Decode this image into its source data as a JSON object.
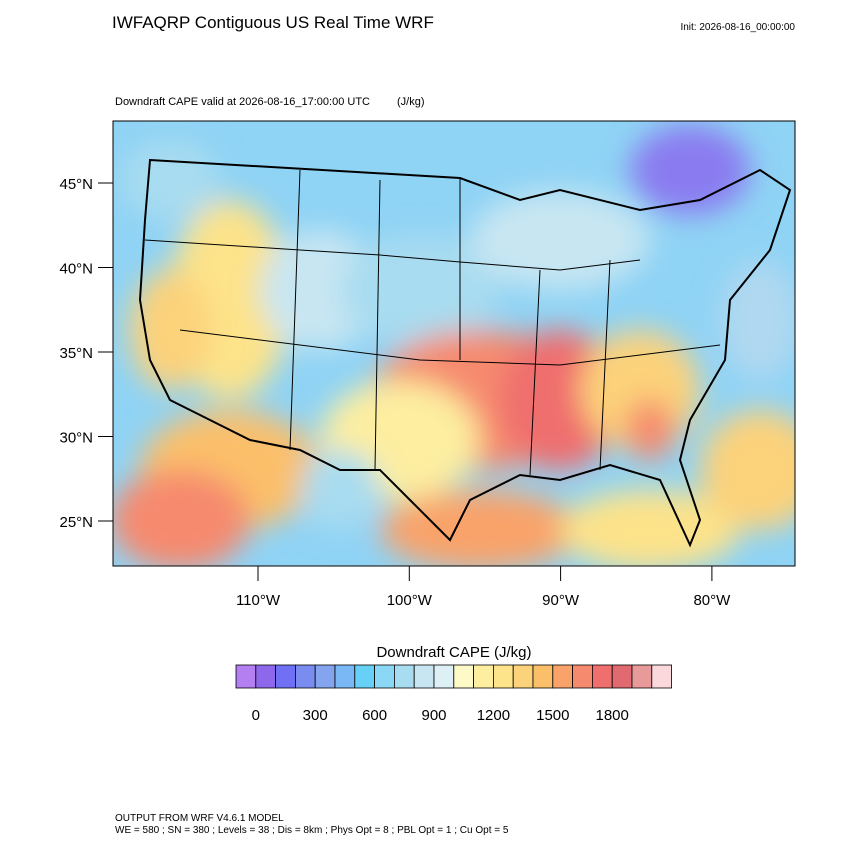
{
  "header": {
    "title": "IWFAQRP Contiguous US Real Time WRF",
    "init": "Init: 2026-08-16_00:00:00",
    "subtitle": "Downdraft CAPE valid at 2026-08-16_17:00:00 UTC",
    "units": "(J/kg)"
  },
  "map": {
    "lat_labels": [
      "45°N",
      "40°N",
      "35°N",
      "30°N",
      "25°N"
    ],
    "lon_labels": [
      "110°W",
      "100°W",
      "90°W",
      "80°W"
    ]
  },
  "colorbar": {
    "title": "Downdraft CAPE  (J/kg)",
    "colors": [
      "#b47ff0",
      "#8e68ec",
      "#7070f5",
      "#7b8cf0",
      "#84a4f0",
      "#7ab8f5",
      "#66d0f7",
      "#8ad8f5",
      "#a8dcf0",
      "#c8e6f2",
      "#dcf0f5",
      "#fefac8",
      "#fdeea0",
      "#fde38a",
      "#fcd27a",
      "#fbbf6a",
      "#f9a36a",
      "#f68a6e",
      "#ef6e6e",
      "#e06a70",
      "#e8999a",
      "#fad8dc"
    ],
    "ticks": [
      "0",
      "300",
      "600",
      "900",
      "1200",
      "1500",
      "1800"
    ]
  },
  "footer": {
    "line1": "OUTPUT FROM WRF V4.6.1 MODEL",
    "line2": "WE = 580 ; SN = 380 ; Levels = 38 ; Dis = 8km ; Phys Opt = 8 ; PBL Opt = 1 ; Cu Opt = 5"
  }
}
